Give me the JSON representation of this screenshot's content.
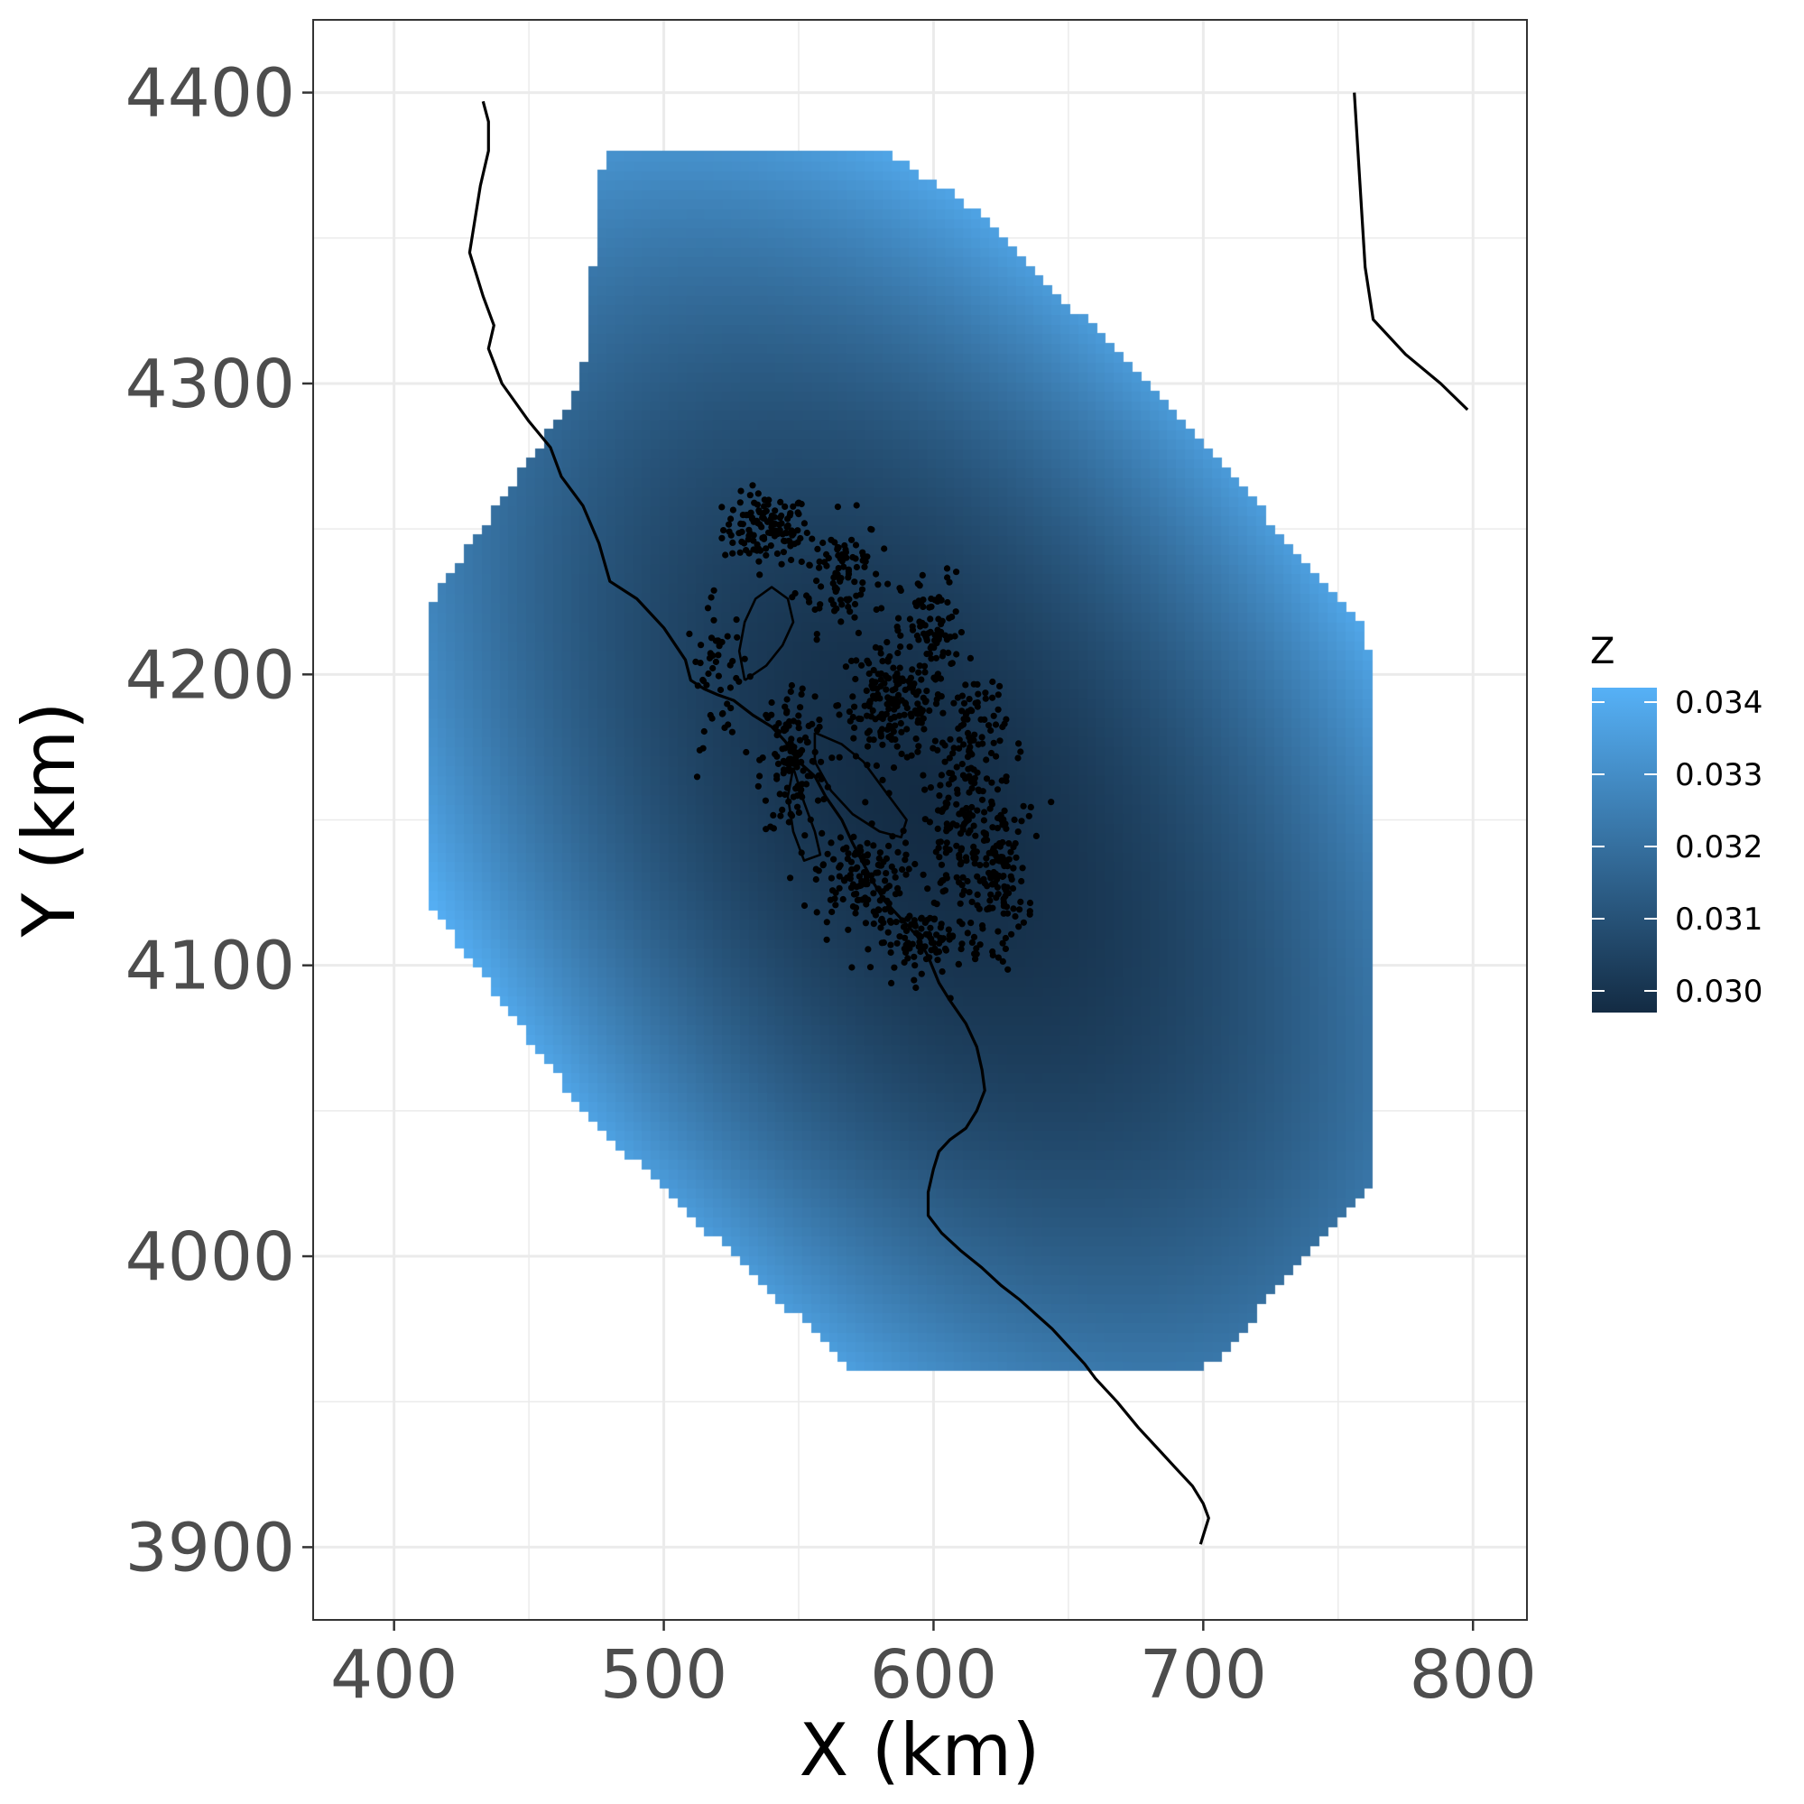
{
  "chart_data": {
    "type": "heatmap",
    "xlabel": "X (km)",
    "ylabel": "Y (km)",
    "xlim": [
      370,
      820
    ],
    "ylim": [
      3875,
      4425
    ],
    "x_ticks": [
      400,
      500,
      600,
      700,
      800
    ],
    "y_ticks": [
      3900,
      4000,
      4100,
      4200,
      4300,
      4400
    ],
    "x_tick_labels": [
      "400",
      "500",
      "600",
      "700",
      "800"
    ],
    "y_tick_labels": [
      "3900",
      "4000",
      "4100",
      "4200",
      4300,
      "4400"
    ],
    "grid": true,
    "legend": {
      "title": "Z",
      "position": "right",
      "breaks": [
        0.03,
        0.031,
        0.032,
        0.033,
        0.034
      ],
      "labels": [
        "0.030",
        "0.031",
        "0.032",
        "0.033",
        "0.034"
      ],
      "range": [
        0.0297,
        0.0342
      ],
      "low_color": "#132b43",
      "high_color": "#56b1f7"
    },
    "surface": {
      "cell_size": 3.3,
      "center": [
        598,
        4155
      ],
      "min_value": 0.0297,
      "max_value": 0.0342,
      "footprint_polygon": [
        [
          478,
          4381
        ],
        [
          580,
          4381
        ],
        [
          615,
          4360
        ],
        [
          690,
          4290
        ],
        [
          760,
          4215
        ],
        [
          762,
          4200
        ],
        [
          762,
          4025
        ],
        [
          705,
          3965
        ],
        [
          700,
          3962
        ],
        [
          570,
          3962
        ],
        [
          560,
          3970
        ],
        [
          470,
          4050
        ],
        [
          414,
          4120
        ],
        [
          414,
          4225
        ],
        [
          470,
          4300
        ],
        [
          478,
          4381
        ]
      ]
    },
    "coastline": [
      [
        [
          433,
          4397
        ],
        [
          435,
          4390
        ],
        [
          435,
          4380
        ],
        [
          432,
          4368
        ],
        [
          428,
          4345
        ],
        [
          433,
          4330
        ],
        [
          437,
          4320
        ],
        [
          435,
          4312
        ],
        [
          440,
          4300
        ],
        [
          450,
          4287
        ],
        [
          458,
          4278
        ],
        [
          462,
          4268
        ],
        [
          470,
          4258
        ],
        [
          476,
          4245
        ],
        [
          480,
          4232
        ],
        [
          490,
          4226
        ],
        [
          500,
          4216
        ],
        [
          508,
          4205
        ],
        [
          510,
          4198
        ],
        [
          515,
          4195
        ],
        [
          520,
          4193
        ],
        [
          526,
          4191
        ],
        [
          533,
          4186
        ],
        [
          540,
          4182
        ],
        [
          545,
          4177
        ],
        [
          550,
          4170
        ],
        [
          556,
          4165
        ],
        [
          560,
          4158
        ],
        [
          566,
          4150
        ],
        [
          570,
          4142
        ],
        [
          574,
          4135
        ],
        [
          578,
          4128
        ],
        [
          582,
          4122
        ],
        [
          588,
          4116
        ],
        [
          594,
          4110
        ],
        [
          598,
          4103
        ],
        [
          602,
          4094
        ],
        [
          606,
          4088
        ],
        [
          612,
          4080
        ],
        [
          616,
          4072
        ],
        [
          618,
          4064
        ],
        [
          619,
          4057
        ],
        [
          616,
          4050
        ],
        [
          612,
          4044
        ],
        [
          606,
          4040
        ],
        [
          602,
          4036
        ],
        [
          600,
          4030
        ],
        [
          598,
          4022
        ],
        [
          598,
          4014
        ],
        [
          603,
          4008
        ],
        [
          610,
          4002
        ],
        [
          618,
          3996
        ],
        [
          625,
          3990
        ],
        [
          632,
          3985
        ],
        [
          638,
          3980
        ],
        [
          644,
          3975
        ],
        [
          650,
          3969
        ],
        [
          656,
          3963
        ],
        [
          660,
          3958
        ],
        [
          668,
          3950
        ],
        [
          676,
          3941
        ],
        [
          684,
          3933
        ],
        [
          690,
          3927
        ],
        [
          696,
          3921
        ],
        [
          700,
          3915
        ],
        [
          702,
          3910
        ],
        [
          699,
          3901
        ]
      ],
      [
        [
          756,
          4400
        ],
        [
          758,
          4370
        ],
        [
          760,
          4340
        ],
        [
          763,
          4322
        ],
        [
          775,
          4310
        ],
        [
          788,
          4300
        ],
        [
          798,
          4291
        ]
      ]
    ],
    "lake_outlines": [
      [
        [
          530,
          4198
        ],
        [
          538,
          4203
        ],
        [
          544,
          4210
        ],
        [
          548,
          4218
        ],
        [
          546,
          4226
        ],
        [
          540,
          4230
        ],
        [
          534,
          4226
        ],
        [
          530,
          4218
        ],
        [
          528,
          4208
        ],
        [
          530,
          4198
        ]
      ],
      [
        [
          556,
          4180
        ],
        [
          566,
          4176
        ],
        [
          574,
          4170
        ],
        [
          582,
          4160
        ],
        [
          590,
          4150
        ],
        [
          588,
          4144
        ],
        [
          580,
          4146
        ],
        [
          570,
          4152
        ],
        [
          562,
          4160
        ],
        [
          556,
          4170
        ],
        [
          556,
          4180
        ]
      ],
      [
        [
          548,
          4168
        ],
        [
          552,
          4156
        ],
        [
          556,
          4146
        ],
        [
          558,
          4138
        ],
        [
          552,
          4136
        ],
        [
          548,
          4146
        ],
        [
          546,
          4158
        ],
        [
          548,
          4168
        ]
      ]
    ],
    "points": {
      "count": 1220,
      "clusters": [
        {
          "center": [
            538,
            4250
          ],
          "spread": [
            8,
            6
          ],
          "share": 0.1
        },
        {
          "center": [
            565,
            4235
          ],
          "spread": [
            8,
            10
          ],
          "share": 0.08
        },
        {
          "center": [
            585,
            4190
          ],
          "spread": [
            10,
            10
          ],
          "share": 0.16
        },
        {
          "center": [
            612,
            4145
          ],
          "spread": [
            10,
            14
          ],
          "share": 0.14
        },
        {
          "center": [
            548,
            4170
          ],
          "spread": [
            6,
            14
          ],
          "share": 0.1
        },
        {
          "center": [
            572,
            4130
          ],
          "spread": [
            8,
            8
          ],
          "share": 0.1
        },
        {
          "center": [
            600,
            4215
          ],
          "spread": [
            6,
            10
          ],
          "share": 0.06
        },
        {
          "center": [
            625,
            4130
          ],
          "spread": [
            5,
            12
          ],
          "share": 0.08
        },
        {
          "center": [
            598,
            4108
          ],
          "spread": [
            10,
            5
          ],
          "share": 0.08
        },
        {
          "center": [
            520,
            4200
          ],
          "spread": [
            6,
            12
          ],
          "share": 0.04
        },
        {
          "center": [
            615,
            4180
          ],
          "spread": [
            6,
            12
          ],
          "share": 0.06
        }
      ]
    }
  }
}
